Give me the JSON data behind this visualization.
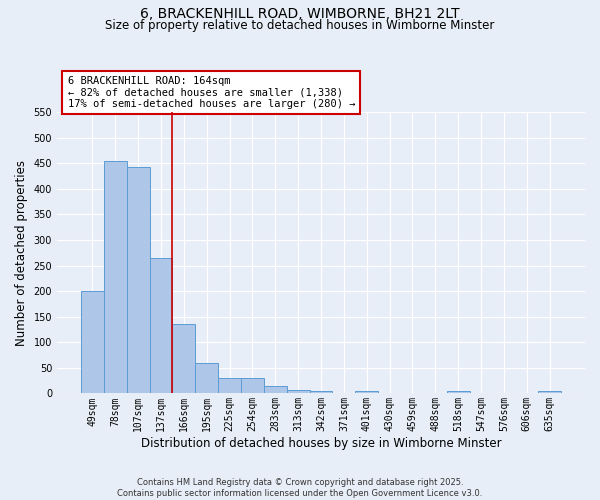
{
  "title": "6, BRACKENHILL ROAD, WIMBORNE, BH21 2LT",
  "subtitle": "Size of property relative to detached houses in Wimborne Minster",
  "xlabel": "Distribution of detached houses by size in Wimborne Minster",
  "ylabel": "Number of detached properties",
  "categories": [
    "49sqm",
    "78sqm",
    "107sqm",
    "137sqm",
    "166sqm",
    "195sqm",
    "225sqm",
    "254sqm",
    "283sqm",
    "313sqm",
    "342sqm",
    "371sqm",
    "401sqm",
    "430sqm",
    "459sqm",
    "488sqm",
    "518sqm",
    "547sqm",
    "576sqm",
    "606sqm",
    "635sqm"
  ],
  "values": [
    201,
    455,
    442,
    265,
    135,
    60,
    30,
    30,
    14,
    7,
    5,
    0,
    5,
    0,
    0,
    0,
    4,
    0,
    0,
    0,
    4
  ],
  "bar_color": "#aec6e8",
  "bar_edge_color": "#5b9bd5",
  "property_line_x": 3.5,
  "annotation_text": "6 BRACKENHILL ROAD: 164sqm\n← 82% of detached houses are smaller (1,338)\n17% of semi-detached houses are larger (280) →",
  "annotation_box_color": "#ffffff",
  "annotation_box_edge": "#cc0000",
  "vline_color": "#cc0000",
  "background_color": "#e8eef7",
  "grid_color": "#ffffff",
  "title_fontsize": 10,
  "subtitle_fontsize": 8.5,
  "tick_fontsize": 7,
  "ylabel_fontsize": 8.5,
  "xlabel_fontsize": 8.5,
  "footer": "Contains HM Land Registry data © Crown copyright and database right 2025.\nContains public sector information licensed under the Open Government Licence v3.0.",
  "ylim": [
    0,
    550
  ],
  "yticks": [
    0,
    50,
    100,
    150,
    200,
    250,
    300,
    350,
    400,
    450,
    500,
    550
  ]
}
